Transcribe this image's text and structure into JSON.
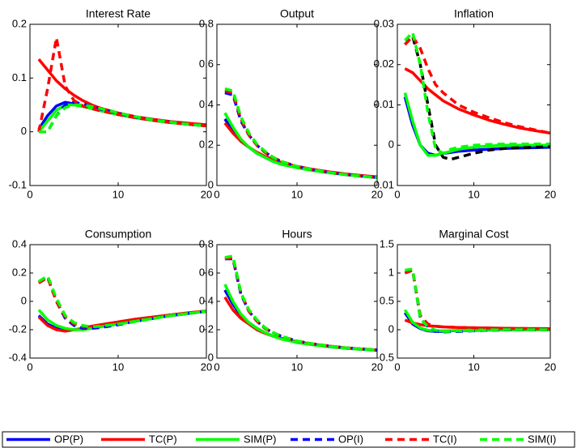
{
  "chart_data": [
    {
      "type": "line",
      "title": "Interest Rate",
      "x": [
        1,
        2,
        3,
        4,
        5,
        6,
        7,
        8,
        10,
        12,
        14,
        16,
        18,
        20
      ],
      "xlim": [
        0,
        20
      ],
      "xticks": [
        0,
        10,
        20
      ],
      "ylim": [
        -0.1,
        0.2
      ],
      "yticks": [
        -0.1,
        0,
        0.1,
        0.2
      ],
      "series": [
        {
          "name": "OP(P)",
          "color": "#0000ff",
          "dashed": false,
          "values": [
            0.005,
            0.03,
            0.048,
            0.055,
            0.052,
            0.048,
            0.044,
            0.04,
            0.032,
            0.026,
            0.021,
            0.017,
            0.014,
            0.011
          ]
        },
        {
          "name": "TC(P)",
          "color": "#ff0000",
          "dashed": false,
          "values": [
            0.135,
            0.115,
            0.095,
            0.08,
            0.068,
            0.058,
            0.05,
            0.044,
            0.035,
            0.028,
            0.023,
            0.019,
            0.016,
            0.013
          ]
        },
        {
          "name": "SIM(P)",
          "color": "#00ff00",
          "dashed": false,
          "values": [
            0.0,
            0.02,
            0.04,
            0.05,
            0.05,
            0.047,
            0.043,
            0.039,
            0.032,
            0.026,
            0.021,
            0.017,
            0.014,
            0.011
          ]
        },
        {
          "name": "OP(I)",
          "color": "#0000ff",
          "dashed": true,
          "values": [
            0.0,
            0.0,
            0.03,
            0.05,
            0.055,
            0.052,
            0.047,
            0.042,
            0.034,
            0.027,
            0.022,
            0.018,
            0.014,
            0.011
          ]
        },
        {
          "name": "TC(I)",
          "color": "#ff0000",
          "dashed": true,
          "values": [
            0.0,
            0.08,
            0.175,
            0.085,
            0.058,
            0.048,
            0.043,
            0.039,
            0.032,
            0.026,
            0.021,
            0.017,
            0.014,
            0.011
          ]
        },
        {
          "name": "SIM(I)",
          "color": "#00ff00",
          "dashed": true,
          "values": [
            0.0,
            0.0,
            0.03,
            0.045,
            0.05,
            0.05,
            0.047,
            0.043,
            0.035,
            0.028,
            0.022,
            0.018,
            0.014,
            0.011
          ]
        }
      ]
    },
    {
      "type": "line",
      "title": "Output",
      "x": [
        1,
        2,
        3,
        4,
        5,
        6,
        7,
        8,
        10,
        12,
        14,
        16,
        18,
        20
      ],
      "xlim": [
        0,
        20
      ],
      "xticks": [
        0,
        10,
        20
      ],
      "ylim": [
        0,
        0.8
      ],
      "yticks": [
        0,
        0.2,
        0.4,
        0.6,
        0.8
      ],
      "series": [
        {
          "color": "#0000ff",
          "dashed": false,
          "values": [
            0.33,
            0.27,
            0.22,
            0.19,
            0.16,
            0.14,
            0.12,
            0.11,
            0.09,
            0.075,
            0.065,
            0.055,
            0.048,
            0.04
          ]
        },
        {
          "color": "#ff0000",
          "dashed": false,
          "values": [
            0.31,
            0.26,
            0.22,
            0.19,
            0.165,
            0.145,
            0.13,
            0.115,
            0.095,
            0.08,
            0.068,
            0.058,
            0.05,
            0.043
          ]
        },
        {
          "color": "#00ff00",
          "dashed": false,
          "values": [
            0.36,
            0.29,
            0.23,
            0.19,
            0.16,
            0.14,
            0.12,
            0.105,
            0.088,
            0.074,
            0.063,
            0.054,
            0.046,
            0.04
          ]
        },
        {
          "color": "#0000ff",
          "dashed": true,
          "values": [
            0.46,
            0.45,
            0.32,
            0.25,
            0.2,
            0.165,
            0.14,
            0.12,
            0.095,
            0.078,
            0.065,
            0.055,
            0.047,
            0.04
          ]
        },
        {
          "color": "#ff0000",
          "dashed": true,
          "values": [
            0.47,
            0.46,
            0.33,
            0.25,
            0.2,
            0.165,
            0.14,
            0.12,
            0.095,
            0.078,
            0.065,
            0.055,
            0.047,
            0.04
          ]
        },
        {
          "color": "#00ff00",
          "dashed": true,
          "values": [
            0.48,
            0.47,
            0.34,
            0.26,
            0.205,
            0.17,
            0.14,
            0.12,
            0.095,
            0.078,
            0.065,
            0.055,
            0.047,
            0.04
          ]
        }
      ]
    },
    {
      "type": "line",
      "title": "Inflation",
      "x": [
        1,
        2,
        3,
        4,
        5,
        6,
        7,
        8,
        10,
        12,
        14,
        16,
        18,
        20
      ],
      "xlim": [
        0,
        20
      ],
      "xticks": [
        0,
        10,
        20
      ],
      "ylim": [
        -0.01,
        0.03
      ],
      "yticks": [
        -0.01,
        0,
        0.01,
        0.02,
        0.03
      ],
      "series": [
        {
          "color": "#0000ff",
          "dashed": false,
          "values": [
            0.012,
            0.005,
            0.0,
            -0.002,
            -0.0025,
            -0.002,
            -0.0018,
            -0.0015,
            -0.0012,
            -0.001,
            -0.0008,
            -0.0007,
            -0.0006,
            -0.0005
          ]
        },
        {
          "color": "#ff0000",
          "dashed": false,
          "values": [
            0.019,
            0.018,
            0.016,
            0.014,
            0.0125,
            0.011,
            0.01,
            0.009,
            0.0075,
            0.0062,
            0.0052,
            0.0043,
            0.0036,
            0.003
          ]
        },
        {
          "color": "#00ff00",
          "dashed": false,
          "values": [
            0.013,
            0.006,
            0.0,
            -0.0025,
            -0.0025,
            -0.002,
            -0.0015,
            -0.001,
            -0.0005,
            -0.0002,
            0,
            0,
            0,
            0
          ]
        },
        {
          "color": "#000000",
          "dashed": true,
          "values": [
            0.025,
            0.027,
            0.02,
            0.01,
            0.0,
            -0.003,
            -0.0035,
            -0.003,
            -0.002,
            -0.0012,
            -0.0008,
            -0.0006,
            -0.0005,
            -0.0004
          ]
        },
        {
          "color": "#ff0000",
          "dashed": true,
          "values": [
            0.025,
            0.027,
            0.024,
            0.019,
            0.015,
            0.013,
            0.0115,
            0.01,
            0.0082,
            0.0068,
            0.0056,
            0.0046,
            0.0038,
            0.003
          ]
        },
        {
          "color": "#00ff00",
          "dashed": true,
          "values": [
            0.026,
            0.028,
            0.02,
            0.008,
            -0.001,
            -0.002,
            -0.001,
            -0.0005,
            0,
            0.0002,
            0.0003,
            0.0003,
            0.0003,
            0.0003
          ]
        }
      ]
    },
    {
      "type": "line",
      "title": "Consumption",
      "x": [
        1,
        2,
        3,
        4,
        5,
        6,
        7,
        8,
        10,
        12,
        14,
        16,
        18,
        20
      ],
      "xlim": [
        0,
        20
      ],
      "xticks": [
        0,
        10,
        20
      ],
      "ylim": [
        -0.4,
        0.4
      ],
      "yticks": [
        -0.4,
        -0.2,
        0,
        0.2,
        0.4
      ],
      "series": [
        {
          "color": "#0000ff",
          "dashed": false,
          "values": [
            -0.1,
            -0.16,
            -0.19,
            -0.2,
            -0.2,
            -0.195,
            -0.185,
            -0.175,
            -0.155,
            -0.135,
            -0.115,
            -0.1,
            -0.085,
            -0.07
          ]
        },
        {
          "color": "#ff0000",
          "dashed": false,
          "values": [
            -0.11,
            -0.17,
            -0.2,
            -0.21,
            -0.2,
            -0.19,
            -0.175,
            -0.165,
            -0.145,
            -0.125,
            -0.11,
            -0.095,
            -0.08,
            -0.068
          ]
        },
        {
          "color": "#00ff00",
          "dashed": false,
          "values": [
            -0.06,
            -0.13,
            -0.17,
            -0.19,
            -0.2,
            -0.2,
            -0.19,
            -0.18,
            -0.16,
            -0.14,
            -0.12,
            -0.1,
            -0.085,
            -0.07
          ]
        },
        {
          "color": "#0000ff",
          "dashed": true,
          "values": [
            0.13,
            0.17,
            0.0,
            -0.12,
            -0.17,
            -0.19,
            -0.19,
            -0.185,
            -0.165,
            -0.14,
            -0.12,
            -0.1,
            -0.085,
            -0.07
          ]
        },
        {
          "color": "#ff0000",
          "dashed": true,
          "values": [
            0.13,
            0.17,
            0.0,
            -0.11,
            -0.16,
            -0.18,
            -0.18,
            -0.175,
            -0.155,
            -0.135,
            -0.115,
            -0.1,
            -0.085,
            -0.07
          ]
        },
        {
          "color": "#00ff00",
          "dashed": true,
          "values": [
            0.14,
            0.18,
            0.02,
            -0.1,
            -0.15,
            -0.17,
            -0.18,
            -0.175,
            -0.16,
            -0.14,
            -0.12,
            -0.1,
            -0.085,
            -0.07
          ]
        }
      ]
    },
    {
      "type": "line",
      "title": "Hours",
      "x": [
        1,
        2,
        3,
        4,
        5,
        6,
        7,
        8,
        10,
        12,
        14,
        16,
        18,
        20
      ],
      "xlim": [
        0,
        20
      ],
      "xticks": [
        0,
        10,
        20
      ],
      "ylim": [
        0,
        0.8
      ],
      "yticks": [
        0,
        0.2,
        0.4,
        0.6,
        0.8
      ],
      "series": [
        {
          "color": "#0000ff",
          "dashed": false,
          "values": [
            0.48,
            0.38,
            0.3,
            0.25,
            0.21,
            0.18,
            0.155,
            0.14,
            0.11,
            0.095,
            0.08,
            0.07,
            0.062,
            0.055
          ]
        },
        {
          "color": "#ff0000",
          "dashed": false,
          "values": [
            0.43,
            0.34,
            0.28,
            0.24,
            0.2,
            0.175,
            0.155,
            0.14,
            0.115,
            0.098,
            0.084,
            0.073,
            0.064,
            0.057
          ]
        },
        {
          "color": "#00ff00",
          "dashed": false,
          "values": [
            0.52,
            0.4,
            0.31,
            0.25,
            0.21,
            0.18,
            0.155,
            0.135,
            0.11,
            0.093,
            0.08,
            0.07,
            0.061,
            0.054
          ]
        },
        {
          "color": "#0000ff",
          "dashed": true,
          "values": [
            0.7,
            0.7,
            0.45,
            0.33,
            0.26,
            0.21,
            0.18,
            0.155,
            0.12,
            0.1,
            0.085,
            0.073,
            0.064,
            0.056
          ]
        },
        {
          "color": "#ff0000",
          "dashed": true,
          "values": [
            0.7,
            0.71,
            0.46,
            0.33,
            0.26,
            0.21,
            0.18,
            0.155,
            0.12,
            0.1,
            0.085,
            0.073,
            0.064,
            0.056
          ]
        },
        {
          "color": "#00ff00",
          "dashed": true,
          "values": [
            0.71,
            0.72,
            0.46,
            0.34,
            0.27,
            0.215,
            0.18,
            0.155,
            0.12,
            0.1,
            0.085,
            0.073,
            0.064,
            0.056
          ]
        }
      ]
    },
    {
      "type": "line",
      "title": "Marginal Cost",
      "x": [
        1,
        2,
        3,
        4,
        5,
        6,
        7,
        8,
        10,
        12,
        14,
        16,
        18,
        20
      ],
      "xlim": [
        0,
        20
      ],
      "xticks": [
        0,
        10,
        20
      ],
      "ylim": [
        -0.5,
        1.5
      ],
      "yticks": [
        -0.5,
        0,
        0.5,
        1,
        1.5
      ],
      "series": [
        {
          "color": "#0000ff",
          "dashed": false,
          "values": [
            0.3,
            0.1,
            0.02,
            -0.02,
            -0.03,
            -0.03,
            -0.02,
            -0.015,
            -0.01,
            -0.005,
            0,
            0,
            0,
            0
          ]
        },
        {
          "color": "#ff0000",
          "dashed": false,
          "values": [
            0.17,
            0.12,
            0.09,
            0.07,
            0.06,
            0.05,
            0.045,
            0.04,
            0.035,
            0.03,
            0.025,
            0.022,
            0.02,
            0.018
          ]
        },
        {
          "color": "#00ff00",
          "dashed": false,
          "values": [
            0.35,
            0.13,
            0.03,
            -0.01,
            -0.02,
            -0.02,
            -0.015,
            -0.01,
            -0.005,
            0,
            0,
            0,
            0,
            0
          ]
        },
        {
          "color": "#0000ff",
          "dashed": true,
          "values": [
            1.0,
            1.05,
            0.2,
            0.05,
            -0.02,
            -0.04,
            -0.035,
            -0.03,
            -0.02,
            -0.01,
            -0.005,
            0,
            0,
            0
          ]
        },
        {
          "color": "#ff0000",
          "dashed": true,
          "values": [
            1.0,
            1.05,
            0.25,
            0.1,
            0.06,
            0.05,
            0.045,
            0.04,
            0.035,
            0.03,
            0.025,
            0.022,
            0.02,
            0.018
          ]
        },
        {
          "color": "#00ff00",
          "dashed": true,
          "values": [
            1.05,
            1.07,
            0.2,
            0.05,
            -0.01,
            -0.03,
            -0.03,
            -0.02,
            -0.015,
            -0.005,
            0,
            0,
            0,
            0
          ]
        }
      ]
    }
  ]
}
